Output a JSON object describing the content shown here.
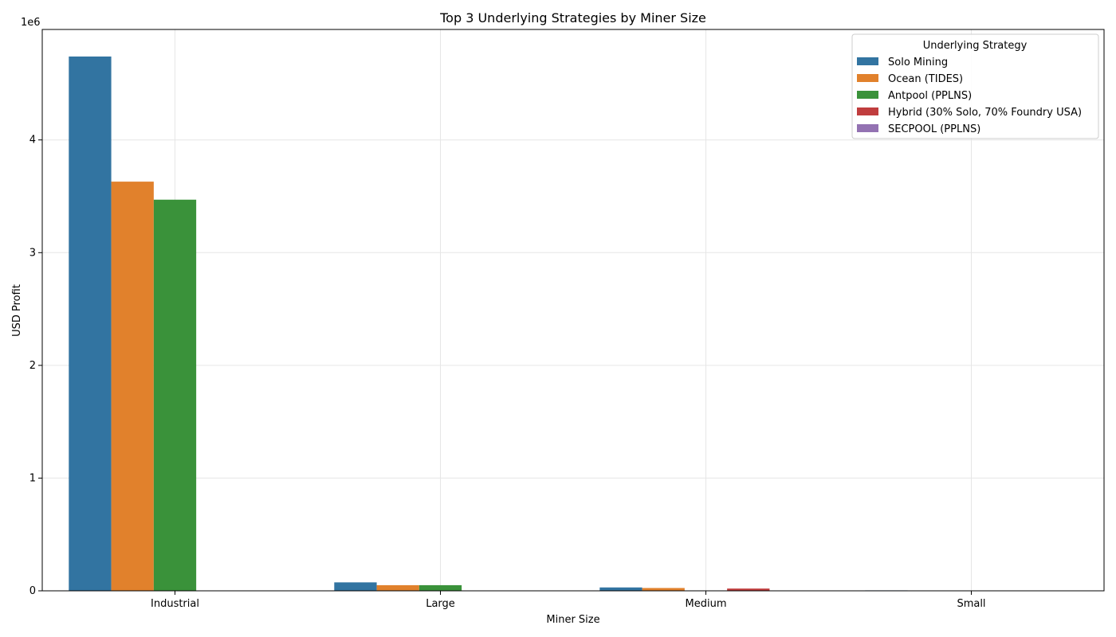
{
  "chart_data": {
    "type": "bar",
    "title": "Top 3 Underlying Strategies by Miner Size",
    "xlabel": "Miner Size",
    "ylabel": "USD Profit",
    "y_offset_label": "1e6",
    "ylim": [
      0,
      4980000
    ],
    "yticks": [
      0,
      1000000,
      2000000,
      3000000,
      4000000
    ],
    "ytick_labels": [
      "0",
      "1",
      "2",
      "3",
      "4"
    ],
    "grid": true,
    "categories": [
      "Industrial",
      "Large",
      "Medium",
      "Small"
    ],
    "legend": {
      "title": "Underlying Strategy",
      "placement": "top-right"
    },
    "series": [
      {
        "name": "Solo Mining",
        "color": "#3274a1",
        "values": [
          4740000,
          75000,
          30000,
          4000
        ]
      },
      {
        "name": "Ocean (TIDES)",
        "color": "#e1812c",
        "values": [
          3630000,
          50000,
          25000,
          3000
        ]
      },
      {
        "name": "Antpool (PPLNS)",
        "color": "#3a923a",
        "values": [
          3470000,
          50000,
          null,
          3000
        ]
      },
      {
        "name": "Hybrid (30% Solo, 70% Foundry USA)",
        "color": "#c03d3e",
        "values": [
          null,
          null,
          20000,
          null
        ]
      },
      {
        "name": "SECPOOL (PPLNS)",
        "color": "#9372b2",
        "values": [
          null,
          null,
          null,
          3000
        ]
      }
    ]
  }
}
